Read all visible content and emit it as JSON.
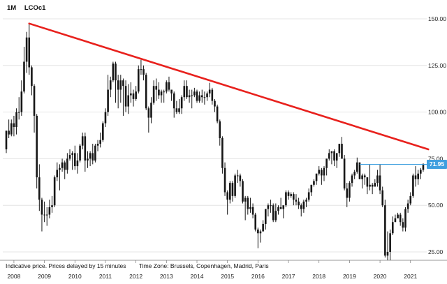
{
  "header": {
    "interval": "1M",
    "symbol": "LCOc1"
  },
  "footer": {
    "disclaimer": "Indicative price. Prices delayed by 15 minutes",
    "timezone": "Time Zone: Brussels, Copenhagen, Madrid, Paris"
  },
  "chart_data": {
    "type": "candlestick",
    "symbol": "LCOc1",
    "interval": "1M",
    "x_start": "2007-10",
    "x_axis": {
      "years": [
        "2008",
        "2009",
        "2010",
        "2011",
        "2012",
        "2013",
        "2014",
        "2015",
        "2016",
        "2017",
        "2018",
        "2019",
        "2020",
        "2021"
      ]
    },
    "y_axis": {
      "ticks": [
        {
          "label": "150.00",
          "value": 150
        },
        {
          "label": "125.00",
          "value": 125
        },
        {
          "label": "100.00",
          "value": 100
        },
        {
          "label": "75.00",
          "value": 75
        },
        {
          "label": "50.00",
          "value": 50
        },
        {
          "label": "25.00",
          "value": 25
        }
      ],
      "range": [
        19,
        152
      ]
    },
    "ohlc": [
      [
        80,
        90,
        78,
        90
      ],
      [
        90,
        96,
        86,
        88
      ],
      [
        88,
        96,
        87,
        94
      ],
      [
        94,
        98,
        87,
        92
      ],
      [
        92,
        102,
        88,
        100
      ],
      [
        100,
        108,
        96,
        100
      ],
      [
        100,
        117,
        98,
        111
      ],
      [
        111,
        135,
        110,
        127
      ],
      [
        127,
        143,
        121,
        140
      ],
      [
        140,
        147.5,
        120,
        124
      ],
      [
        124,
        125,
        109,
        114
      ],
      [
        114,
        115,
        89,
        98
      ],
      [
        98,
        99,
        59,
        65
      ],
      [
        65,
        72,
        47,
        53
      ],
      [
        53,
        54,
        36,
        45
      ],
      [
        45,
        52,
        41,
        45
      ],
      [
        45,
        49,
        39,
        45
      ],
      [
        45,
        53,
        43,
        49
      ],
      [
        49,
        55,
        46,
        50
      ],
      [
        50,
        66,
        49,
        65
      ],
      [
        65,
        73,
        63,
        69
      ],
      [
        69,
        72,
        58,
        70
      ],
      [
        70,
        75,
        68,
        73
      ],
      [
        73,
        74,
        64,
        69
      ],
      [
        69,
        78,
        67,
        75
      ],
      [
        75,
        80,
        74,
        77
      ],
      [
        77,
        79,
        69,
        78
      ],
      [
        78,
        82,
        69,
        71
      ],
      [
        71,
        78,
        67,
        74
      ],
      [
        74,
        83,
        73,
        82
      ],
      [
        82,
        89,
        80,
        87
      ],
      [
        87,
        89,
        68,
        74
      ],
      [
        74,
        79,
        70,
        75
      ],
      [
        75,
        79,
        71,
        78
      ],
      [
        78,
        83,
        72,
        74
      ],
      [
        74,
        83,
        73,
        82
      ],
      [
        82,
        85,
        79,
        83
      ],
      [
        83,
        89,
        81,
        85
      ],
      [
        85,
        95,
        84,
        94
      ],
      [
        94,
        102,
        92,
        100
      ],
      [
        100,
        120,
        98,
        112
      ],
      [
        112,
        119,
        108,
        117
      ],
      [
        117,
        127,
        116,
        126
      ],
      [
        126,
        127,
        105,
        117
      ],
      [
        117,
        120,
        102,
        112
      ],
      [
        112,
        120,
        105,
        117
      ],
      [
        117,
        118,
        98,
        114
      ],
      [
        114,
        117,
        100,
        103
      ],
      [
        103,
        115,
        99,
        109
      ],
      [
        109,
        116,
        105,
        110
      ],
      [
        110,
        112,
        103,
        107
      ],
      [
        107,
        114,
        106,
        111
      ],
      [
        111,
        125,
        110,
        123
      ],
      [
        123,
        128,
        120,
        123
      ],
      [
        123,
        125,
        117,
        120
      ],
      [
        120,
        121,
        101,
        102
      ],
      [
        102,
        103,
        89,
        97
      ],
      [
        97,
        108,
        94,
        105
      ],
      [
        105,
        117,
        104,
        114
      ],
      [
        114,
        118,
        106,
        112
      ],
      [
        112,
        116,
        107,
        109
      ],
      [
        109,
        112,
        105,
        111
      ],
      [
        111,
        112,
        105,
        111
      ],
      [
        111,
        117,
        110,
        116
      ],
      [
        116,
        119,
        111,
        112
      ],
      [
        112,
        112,
        106,
        110
      ],
      [
        110,
        111,
        97,
        102
      ],
      [
        102,
        106,
        99,
        100
      ],
      [
        100,
        107,
        99,
        102
      ],
      [
        102,
        109,
        99,
        108
      ],
      [
        108,
        117,
        106,
        114
      ],
      [
        114,
        117,
        107,
        108
      ],
      [
        108,
        112,
        105,
        109
      ],
      [
        109,
        112,
        102,
        109
      ],
      [
        109,
        113,
        108,
        111
      ],
      [
        111,
        112,
        105,
        106
      ],
      [
        106,
        111,
        105,
        109
      ],
      [
        109,
        112,
        105,
        108
      ],
      [
        108,
        111,
        104,
        108
      ],
      [
        108,
        111,
        106,
        110
      ],
      [
        110,
        115.7,
        108,
        112
      ],
      [
        112,
        113,
        104,
        106
      ],
      [
        106,
        107,
        100,
        103
      ],
      [
        103,
        104,
        94,
        95
      ],
      [
        95,
        96,
        82,
        86
      ],
      [
        86,
        87,
        67,
        70
      ],
      [
        70,
        73,
        55,
        57
      ],
      [
        57,
        58,
        45,
        53
      ],
      [
        53,
        63,
        51,
        62
      ],
      [
        62,
        63,
        52,
        55
      ],
      [
        55,
        67,
        54,
        66
      ],
      [
        66,
        69,
        62,
        66
      ],
      [
        66,
        67,
        60,
        63
      ],
      [
        63,
        64,
        51,
        52
      ],
      [
        52,
        55,
        42,
        54
      ],
      [
        54,
        55,
        45,
        48
      ],
      [
        48,
        54,
        46,
        49
      ],
      [
        49,
        51,
        43,
        45
      ],
      [
        45,
        46,
        36,
        37
      ],
      [
        37,
        38,
        27,
        35
      ],
      [
        35,
        37,
        30,
        36
      ],
      [
        36,
        42,
        36,
        40
      ],
      [
        40,
        48,
        37,
        48
      ],
      [
        48,
        51,
        44,
        50
      ],
      [
        50,
        53,
        46,
        50
      ],
      [
        50,
        51,
        41,
        42
      ],
      [
        42,
        51,
        41,
        47
      ],
      [
        47,
        50,
        45,
        49
      ],
      [
        49,
        54,
        48,
        48
      ],
      [
        48,
        49,
        43,
        50
      ],
      [
        50,
        58,
        49,
        57
      ],
      [
        57,
        58,
        53,
        55
      ],
      [
        55,
        57,
        54,
        56
      ],
      [
        56,
        57,
        50,
        53
      ],
      [
        53,
        56,
        50,
        52
      ],
      [
        52,
        54,
        48,
        50
      ],
      [
        50,
        51,
        44,
        48
      ],
      [
        48,
        53,
        46,
        52
      ],
      [
        52,
        54,
        49,
        53
      ],
      [
        53,
        59,
        52,
        57
      ],
      [
        57,
        61,
        55,
        61
      ],
      [
        61,
        64,
        60,
        63
      ],
      [
        63,
        67,
        61,
        67
      ],
      [
        67,
        71,
        66,
        69
      ],
      [
        69,
        70,
        61,
        66
      ],
      [
        66,
        71,
        63,
        70
      ],
      [
        70,
        75,
        66,
        75
      ],
      [
        75,
        80,
        74,
        78
      ],
      [
        78,
        79,
        72,
        79
      ],
      [
        79,
        80,
        71,
        74
      ],
      [
        74,
        78,
        70,
        78
      ],
      [
        78,
        83,
        76,
        83
      ],
      [
        83,
        86.7,
        75,
        75
      ],
      [
        75,
        77,
        58,
        59
      ],
      [
        59,
        62,
        49,
        54
      ],
      [
        54,
        63,
        52,
        62
      ],
      [
        62,
        67,
        60,
        66
      ],
      [
        66,
        69,
        64,
        68
      ],
      [
        68,
        75.6,
        67,
        73
      ],
      [
        73,
        73,
        64,
        64
      ],
      [
        64,
        67,
        59,
        66
      ],
      [
        66,
        67,
        61,
        65
      ],
      [
        65,
        65,
        56,
        60
      ],
      [
        60,
        72,
        58,
        61
      ],
      [
        61,
        62,
        56,
        60
      ],
      [
        60,
        64,
        60,
        62
      ],
      [
        62,
        69,
        60,
        66
      ],
      [
        66,
        72,
        56,
        58
      ],
      [
        58,
        60,
        49,
        50
      ],
      [
        50,
        53,
        22,
        23
      ],
      [
        23,
        36,
        20,
        25
      ],
      [
        25,
        37,
        19,
        35
      ],
      [
        35,
        44,
        34,
        41
      ],
      [
        41,
        45,
        41,
        43
      ],
      [
        43,
        46,
        43,
        45
      ],
      [
        45,
        46,
        39,
        41
      ],
      [
        41,
        43,
        36,
        38
      ],
      [
        38,
        49,
        36,
        48
      ],
      [
        48,
        53,
        46,
        51
      ],
      [
        51,
        57,
        50,
        55
      ],
      [
        55,
        67,
        54,
        66
      ],
      [
        66,
        71,
        60,
        64
      ],
      [
        64,
        69,
        61,
        67
      ],
      [
        67,
        70,
        64,
        69
      ],
      [
        69,
        72.5,
        68,
        71.95
      ]
    ],
    "trendline": {
      "start": {
        "month_index": 9,
        "price": 147.5
      },
      "end": {
        "month_index": 166,
        "price": 80
      }
    },
    "ref_line": {
      "price": 71.95,
      "label": "71.95",
      "start_month_index": 139
    },
    "colors": {
      "trend_red": "#e8211d",
      "ref_blue": "#3f9fdf",
      "bars": "#161616",
      "grid": "#e4e4e4",
      "axis": "#777777"
    }
  }
}
